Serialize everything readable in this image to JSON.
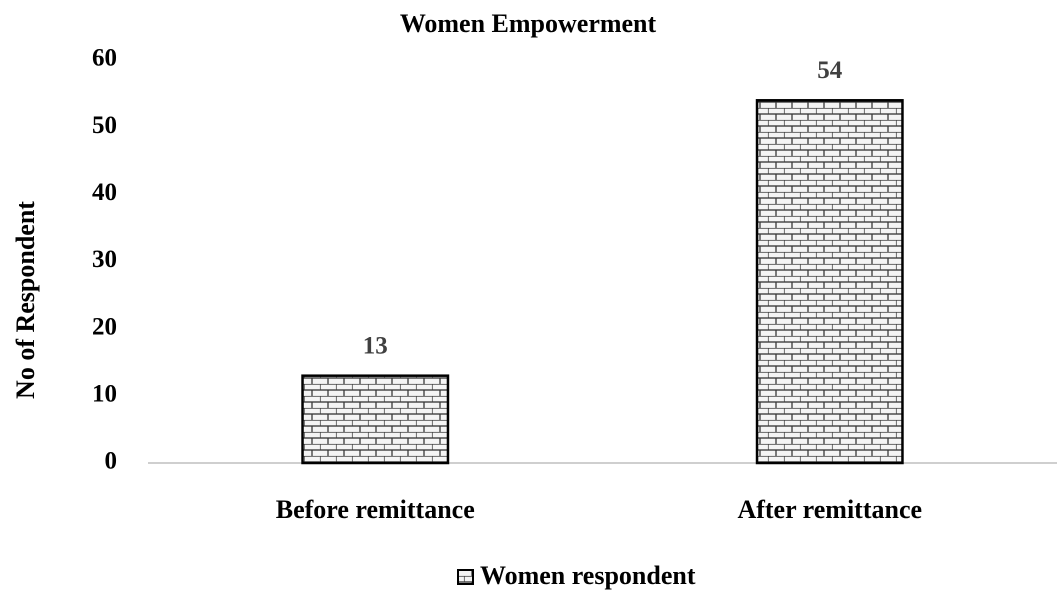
{
  "chart_data": {
    "type": "bar",
    "title": "Women Empowerment",
    "y_label": "No of Respondent",
    "categories": [
      "Before remittance",
      "After remittance"
    ],
    "series": [
      {
        "name": "Women respondent",
        "color": "#000000",
        "values": [
          13,
          54
        ]
      }
    ],
    "ylim": [
      0,
      60
    ],
    "yticks": [
      0,
      10,
      20,
      30,
      40,
      50,
      60
    ],
    "grid": false,
    "legend": "bottom"
  }
}
